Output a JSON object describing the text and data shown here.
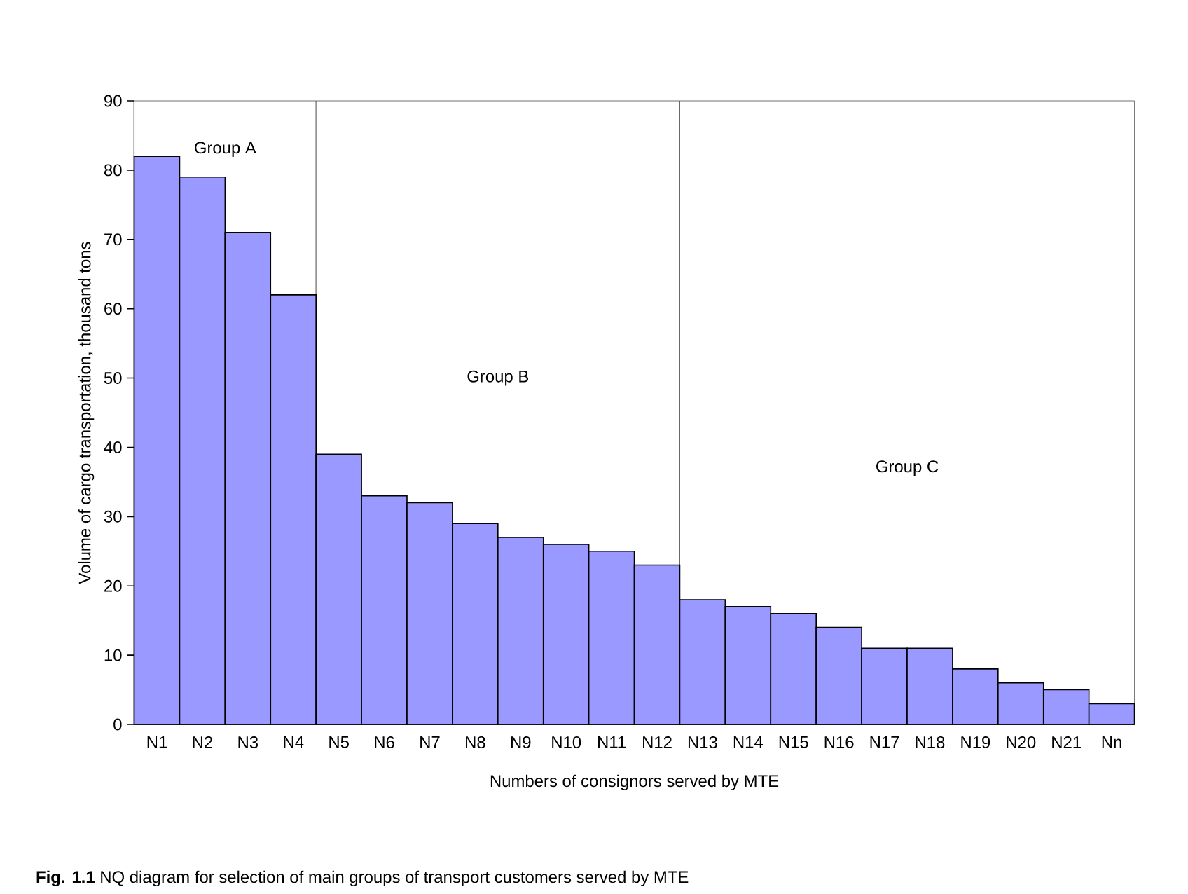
{
  "chart_data": {
    "type": "bar",
    "xlabel": "Numbers of consignors served by MTE",
    "ylabel": "Volume of cargo transportation, thousand tons",
    "categories": [
      "N1",
      "N2",
      "N3",
      "N4",
      "N5",
      "N6",
      "N7",
      "N8",
      "N9",
      "N10",
      "N11",
      "N12",
      "N13",
      "N14",
      "N15",
      "N16",
      "N17",
      "N18",
      "N19",
      "N20",
      "N21",
      "Nn"
    ],
    "values": [
      82,
      79,
      71,
      62,
      39,
      33,
      32,
      29,
      27,
      26,
      25,
      23,
      18,
      17,
      16,
      14,
      11,
      11,
      8,
      6,
      5,
      3
    ],
    "color": "#9999ff",
    "ylim": [
      0,
      90
    ],
    "yticks": [
      0,
      10,
      20,
      30,
      40,
      50,
      60,
      70,
      80,
      90
    ],
    "grid": false,
    "bands": [
      {
        "axis": "x",
        "from": "N1",
        "to": "N4",
        "label": "Group A",
        "color": "#ffffff"
      },
      {
        "axis": "x",
        "from": "N5",
        "to": "N12",
        "label": "Group B",
        "color": "#ffffff"
      },
      {
        "axis": "x",
        "from": "N13",
        "to": "Nn",
        "label": "Group C",
        "color": "#ffffff"
      }
    ],
    "annotations": [
      "**Fig. 1.1** NQ diagram for selection of main groups of transport customers served by MTE"
    ]
  }
}
